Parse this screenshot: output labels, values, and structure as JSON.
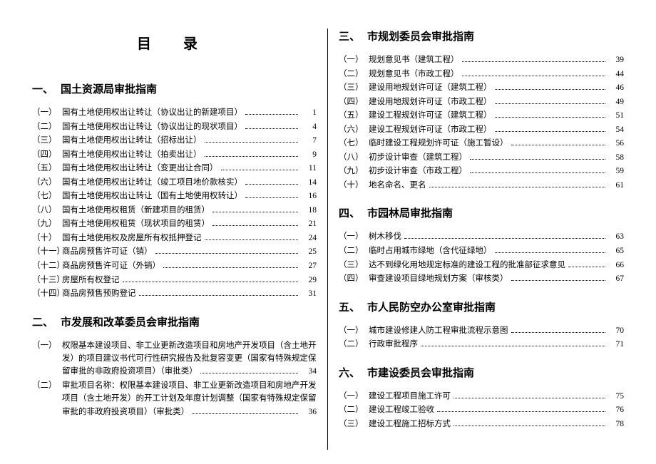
{
  "title": "目 录",
  "left": {
    "sections": [
      {
        "num": "一、",
        "title": "国土资源局审批指南",
        "entries": [
          {
            "num": "（一）",
            "text": "国有土地使用权出让转让（协议出让的新建项目）",
            "page": "1"
          },
          {
            "num": "（二）",
            "text": "国有土地使用权出让转让（协议出让的现状项目）",
            "page": "4"
          },
          {
            "num": "（三）",
            "text": "国有土地使用权出让转让（招标出让）",
            "page": "7"
          },
          {
            "num": "（四）",
            "text": "国有土地使用权出让转让（拍卖出让）",
            "page": "9"
          },
          {
            "num": "（五）",
            "text": "国有土地使用权出让转让（变更出让合同）",
            "page": "11"
          },
          {
            "num": "（六）",
            "text": "国有土地使用权出让转让（竣工项目地价款核实）",
            "page": "14"
          },
          {
            "num": "（七）",
            "text": "国有土地使用权出让转让（国有土地使用权转让）",
            "page": "16"
          },
          {
            "num": "（八）",
            "text": "国有土地使用权租赁（新建项目的租赁）",
            "page": "18"
          },
          {
            "num": "（九）",
            "text": "国有土地使用权租赁（现状项目的租赁）",
            "page": "21"
          },
          {
            "num": "（十）",
            "text": "国有土地使用权及房屋所有权抵押登记",
            "page": "24"
          },
          {
            "num": "（十一）",
            "text": "商品房预售许可证（销）",
            "page": "25"
          },
          {
            "num": "（十二）",
            "text": "商品房预售许可证（外销）",
            "page": "27"
          },
          {
            "num": "（十三）",
            "text": "房屋所有权登记",
            "page": "29"
          },
          {
            "num": "（十四）",
            "text": "商品房预售预购登记",
            "page": "31"
          }
        ]
      },
      {
        "num": "二、",
        "title": "市发展和改革委员会审批指南",
        "entries": [
          {
            "num": "（一）",
            "wrap": true,
            "lines": [
              "权限基本建设项目、非工业更新改造项目和房地产开发项目（含土地开",
              "发）的项目建议书代可行性研究报告及批复容变更（国家有特殊规定保",
              "留审批的非政府投资项目）（审批类）"
            ],
            "page": "34"
          },
          {
            "num": "（二）",
            "wrap": true,
            "lines": [
              "审批项目名称：权限基本建设项目、非工业更新改造项目和房地产开发",
              "项目（含土地开发）的开工计划及年度计划调整（国家有特殊规定保留",
              "审批的非政府投资项目）（审批类）"
            ],
            "page": "36"
          }
        ]
      }
    ]
  },
  "right": {
    "sections": [
      {
        "num": "三、",
        "title": "市规划委员会审批指南",
        "entries": [
          {
            "num": "（一）",
            "text": "规划意见书（建筑工程）",
            "page": "39"
          },
          {
            "num": "（二）",
            "text": "规划意见书（市政工程）",
            "page": "44"
          },
          {
            "num": "（三）",
            "text": "建设用地规划许可证（建筑工程）",
            "page": "46"
          },
          {
            "num": "（四）",
            "text": "建设用地规划许可证（市政工程）",
            "page": "49"
          },
          {
            "num": "（五）",
            "text": "建设工程规划许可证（建筑工程）",
            "page": "51"
          },
          {
            "num": "（六）",
            "text": "建设工程规划许可证（市政工程）",
            "page": "54"
          },
          {
            "num": "（七）",
            "text": "临时建设工程规划许可证（施工暂设）",
            "page": "56"
          },
          {
            "num": "（八）",
            "text": "初步设计审查（建筑工程）",
            "page": "58"
          },
          {
            "num": "（九）",
            "text": "初步设计审查（市政工程）",
            "page": "59"
          },
          {
            "num": "（十）",
            "text": "地名命名、更名",
            "page": "61"
          }
        ]
      },
      {
        "num": "四、",
        "title": "市园林局审批指南",
        "entries": [
          {
            "num": "（一）",
            "text": "树木移伐",
            "page": "63"
          },
          {
            "num": "（二）",
            "text": "临时占用城市绿地（含代征绿地）",
            "page": "65"
          },
          {
            "num": "（三）",
            "text": "达不到绿化用地规定标准的建设工程的批准部征求意见",
            "page": "66"
          },
          {
            "num": "（四）",
            "text": "审查建设项目绿地规划方案（审核类）",
            "page": "67"
          }
        ]
      },
      {
        "num": "五、",
        "title": "市人民防空办公室审批指南",
        "entries": [
          {
            "num": "（一）",
            "text": "城市建设修建人防工程审批流程示意图",
            "page": "70"
          },
          {
            "num": "（二）",
            "text": "行政审批程序",
            "page": "71"
          }
        ]
      },
      {
        "num": "六、",
        "title": "市建设委员会审批指南",
        "entries": [
          {
            "num": "（一）",
            "text": "建设工程项目施工许可",
            "page": "75"
          },
          {
            "num": "（二）",
            "text": "建设工程竣工验收",
            "page": "76"
          },
          {
            "num": "（三）",
            "text": "建设工程施工招标方式",
            "page": "78"
          }
        ]
      }
    ]
  }
}
